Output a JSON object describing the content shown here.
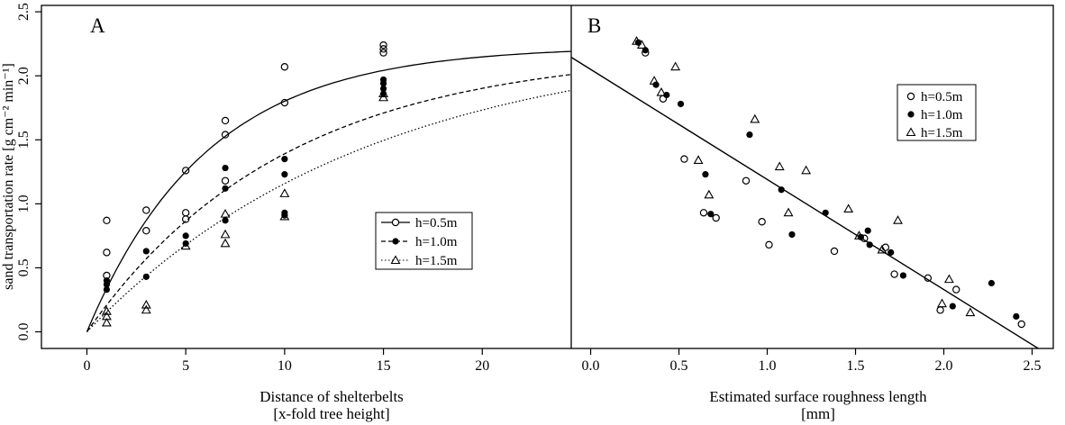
{
  "y_label": "sand transportation rate [g cm⁻² min⁻¹]",
  "chart_data": [
    {
      "panel": "A",
      "type": "scatter",
      "xlabel": [
        "Distance of shelterbelts",
        "[x-fold tree height]"
      ],
      "ylabel": "sand transportation rate [g cm⁻² min⁻¹]",
      "xlim": [
        -2.3,
        24.5
      ],
      "ylim": [
        -0.13,
        2.55
      ],
      "xticks": [
        "0",
        "5",
        "10",
        "15",
        "20"
      ],
      "yticks": [
        "0.0",
        "0.5",
        "1.0",
        "1.5",
        "2.0",
        "2.5"
      ],
      "legend_position": "center-right",
      "series": [
        {
          "name": "h=0.5m",
          "marker": "open-circle",
          "line": "solid",
          "x": [
            1,
            1,
            1,
            3,
            3,
            5,
            5,
            5,
            7,
            7,
            7,
            10,
            10,
            15,
            15,
            15
          ],
          "y": [
            0.87,
            0.62,
            0.44,
            0.95,
            0.79,
            1.26,
            0.93,
            0.88,
            1.65,
            1.54,
            1.18,
            2.07,
            1.79,
            2.24,
            2.21,
            2.18
          ],
          "fit": {
            "a": 2.23,
            "k": 0.165
          }
        },
        {
          "name": "h=1.0m",
          "marker": "filled-circle",
          "line": "dashed",
          "x": [
            1,
            1,
            1,
            3,
            3,
            5,
            5,
            7,
            7,
            7,
            10,
            10,
            10,
            10,
            15,
            15,
            15,
            15
          ],
          "y": [
            0.4,
            0.37,
            0.33,
            0.63,
            0.43,
            0.75,
            0.69,
            1.28,
            1.12,
            0.87,
            1.35,
            1.23,
            0.93,
            0.91,
            1.97,
            1.94,
            1.9,
            1.86
          ],
          "fit": {
            "a": 2.2,
            "k": 0.1
          }
        },
        {
          "name": "h=1.5m",
          "marker": "open-triangle",
          "line": "dotted",
          "x": [
            1,
            1,
            1,
            3,
            3,
            5,
            7,
            7,
            7,
            10,
            10,
            15,
            15
          ],
          "y": [
            0.16,
            0.12,
            0.07,
            0.21,
            0.17,
            0.67,
            0.92,
            0.76,
            0.69,
            1.08,
            0.9,
            1.86,
            1.83
          ],
          "fit": {
            "a": 2.3,
            "k": 0.07
          }
        }
      ]
    },
    {
      "panel": "B",
      "type": "scatter",
      "xlabel": [
        "Estimated surface roughness length",
        "[mm]"
      ],
      "xlim": [
        -0.11,
        2.62
      ],
      "ylim": [
        -0.13,
        2.55
      ],
      "xticks": [
        "0.0",
        "0.5",
        "1.0",
        "1.5",
        "2.0",
        "2.5"
      ],
      "legend_position": "upper-right",
      "regression_line": {
        "intercept": 2.05,
        "slope": -0.86
      },
      "series": [
        {
          "name": "h=0.5m",
          "marker": "open-circle",
          "x": [
            0.31,
            0.41,
            0.53,
            0.64,
            0.71,
            0.88,
            0.97,
            1.01,
            1.38,
            1.55,
            1.67,
            1.72,
            1.91,
            1.98,
            2.07,
            2.44
          ],
          "y": [
            2.18,
            1.82,
            1.35,
            0.93,
            0.89,
            1.18,
            0.86,
            0.68,
            0.63,
            0.73,
            0.66,
            0.45,
            0.42,
            0.17,
            0.33,
            0.06
          ]
        },
        {
          "name": "h=1.0m",
          "marker": "filled-circle",
          "x": [
            0.27,
            0.31,
            0.37,
            0.43,
            0.51,
            0.65,
            0.68,
            0.9,
            1.08,
            1.14,
            1.33,
            1.53,
            1.57,
            1.58,
            1.7,
            1.77,
            2.05,
            2.27,
            2.41
          ],
          "y": [
            2.26,
            2.2,
            1.93,
            1.85,
            1.78,
            1.23,
            0.92,
            1.54,
            1.11,
            0.76,
            0.93,
            0.74,
            0.79,
            0.68,
            0.62,
            0.44,
            0.2,
            0.38,
            0.12
          ]
        },
        {
          "name": "h=1.5m",
          "marker": "open-triangle",
          "x": [
            0.26,
            0.29,
            0.36,
            0.4,
            0.48,
            0.61,
            0.67,
            0.93,
            1.07,
            1.12,
            1.22,
            1.46,
            1.52,
            1.65,
            1.74,
            1.99,
            2.03,
            2.15
          ],
          "y": [
            2.27,
            2.24,
            1.96,
            1.87,
            2.07,
            1.34,
            1.07,
            1.66,
            1.29,
            0.93,
            1.26,
            0.96,
            0.75,
            0.64,
            0.87,
            0.22,
            0.41,
            0.15
          ]
        }
      ]
    }
  ],
  "legend_entries": [
    "h=0.5m",
    "h=1.0m",
    "h=1.5m"
  ],
  "panel_letters": [
    "A",
    "B"
  ]
}
